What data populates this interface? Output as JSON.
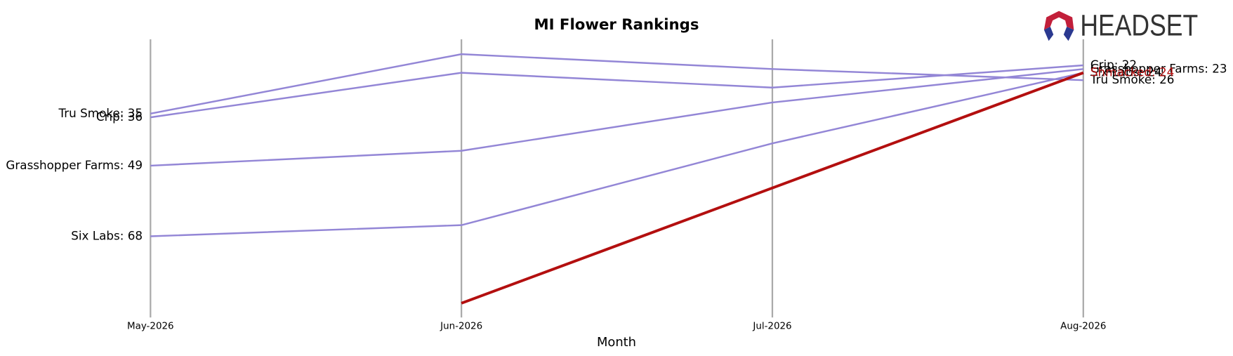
{
  "chart_data": {
    "type": "line",
    "title": "MI Flower Rankings",
    "x_label": "Month",
    "brand": "HEADSET",
    "categories": [
      "May-2026",
      "Jun-2026",
      "Jul-2026",
      "Aug-2026"
    ],
    "ylim": [
      15,
      89
    ],
    "inverted": true,
    "series": [
      {
        "name": "Tru Smoke",
        "color": "#9386d6",
        "values": [
          35,
          19,
          23,
          26
        ],
        "value_labels": [
          "Tru Smoke: 35",
          null,
          null,
          "Tru Smoke: 26"
        ]
      },
      {
        "name": "Crip",
        "color": "#9386d6",
        "values": [
          36,
          24,
          28,
          22
        ],
        "value_labels": [
          "Crip: 36",
          null,
          null,
          "Crip: 22"
        ]
      },
      {
        "name": "Grasshopper Farms",
        "color": "#9386d6",
        "values": [
          49,
          45,
          32,
          23
        ],
        "value_labels": [
          "Grasshopper Farms: 49",
          null,
          null,
          "Grasshopper Farms: 23"
        ]
      },
      {
        "name": "Six Labs",
        "color": "#9386d6",
        "values": [
          68,
          65,
          43,
          24
        ],
        "value_labels": [
          "Six Labs: 68",
          null,
          null,
          "Six Labs: 24"
        ]
      },
      {
        "name": "Shmacked",
        "color": "#b30f0f",
        "highlight": true,
        "values": [
          null,
          86,
          55,
          24
        ],
        "value_labels": [
          null,
          null,
          null,
          "Shmacked: 24"
        ]
      }
    ]
  }
}
